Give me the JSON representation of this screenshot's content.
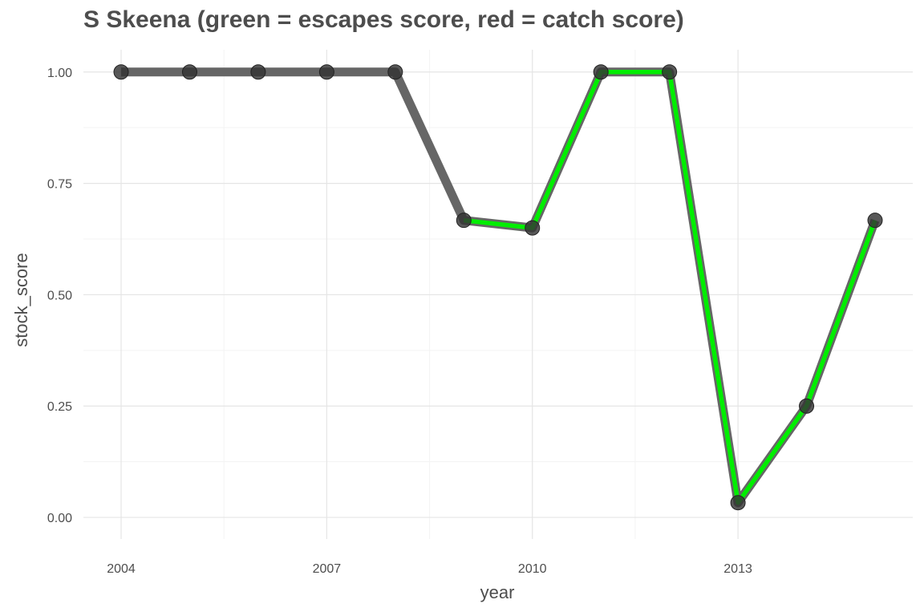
{
  "chart_data": {
    "type": "line",
    "title": "S Skeena (green = escapes score, red = catch score)",
    "xlabel": "year",
    "ylabel": "stock_score",
    "xlim": [
      2003.45,
      2015.55
    ],
    "ylim": [
      -0.0485,
      1.05
    ],
    "x_ticks": [
      2004,
      2007,
      2010,
      2013
    ],
    "x_tick_labels": [
      "2004",
      "2007",
      "2010",
      "2013"
    ],
    "y_ticks": [
      0,
      0.25,
      0.5,
      0.75,
      1.0
    ],
    "y_tick_labels": [
      "0.00",
      "0.25",
      "0.50",
      "0.75",
      "1.00"
    ],
    "grid": true,
    "legend": "none",
    "series": [
      {
        "x": [
          2004,
          2005,
          2006,
          2007,
          2008,
          2009,
          2010,
          2011,
          2012,
          2013,
          2014,
          2015
        ],
        "values": [
          1.0,
          1.0,
          1.0,
          1.0,
          1.0,
          0.667,
          0.65,
          1.0,
          1.0,
          0.033,
          0.25,
          0.667
        ],
        "color": "#666666"
      },
      {
        "x": [
          2009,
          2010,
          2011,
          2012,
          2013,
          2014,
          2015
        ],
        "values": [
          0.667,
          0.65,
          1.0,
          1.0,
          0.033,
          0.25,
          0.667
        ],
        "color": "#00ee00"
      }
    ],
    "point_color": "#333333"
  }
}
